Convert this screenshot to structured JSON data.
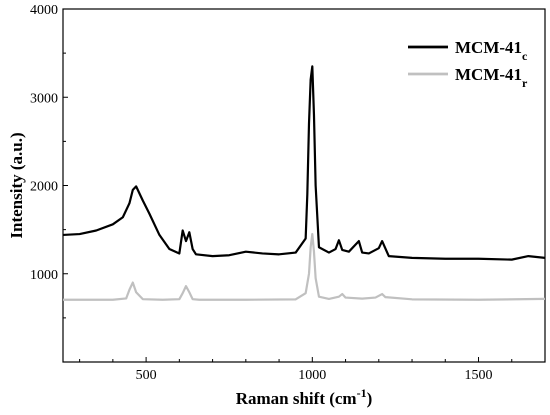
{
  "chart_data": {
    "type": "line",
    "title": "",
    "xlabel": "Raman shift (cm",
    "xlabel_sup": "-1",
    "xlabel_suffix": ")",
    "ylabel": "Intensity (a.u.)",
    "xlim": [
      250,
      1700
    ],
    "ylim": [
      0,
      4000
    ],
    "x_ticks": [
      500,
      1000,
      1500
    ],
    "y_ticks": [
      1000,
      2000,
      3000,
      4000
    ],
    "grid": false,
    "legend_position": "top-right",
    "series": [
      {
        "name": "MCM-41",
        "name_sub": "c",
        "color": "#000000",
        "x": [
          250,
          300,
          350,
          400,
          430,
          450,
          460,
          470,
          490,
          510,
          540,
          570,
          600,
          610,
          620,
          630,
          640,
          650,
          700,
          750,
          800,
          850,
          900,
          950,
          980,
          985,
          990,
          995,
          1000,
          1005,
          1010,
          1020,
          1050,
          1070,
          1080,
          1090,
          1110,
          1130,
          1140,
          1150,
          1170,
          1200,
          1210,
          1230,
          1300,
          1400,
          1500,
          1600,
          1650,
          1700
        ],
        "y": [
          1440,
          1450,
          1490,
          1560,
          1640,
          1800,
          1950,
          1990,
          1830,
          1680,
          1440,
          1280,
          1230,
          1490,
          1370,
          1470,
          1280,
          1220,
          1200,
          1210,
          1250,
          1230,
          1220,
          1240,
          1400,
          1900,
          2700,
          3200,
          3350,
          2800,
          2000,
          1300,
          1240,
          1280,
          1380,
          1270,
          1250,
          1330,
          1370,
          1240,
          1230,
          1290,
          1370,
          1200,
          1180,
          1170,
          1170,
          1160,
          1200,
          1180
        ]
      },
      {
        "name": "MCM-41",
        "name_sub": "r",
        "color": "#c0c0c0",
        "x": [
          250,
          400,
          440,
          450,
          460,
          470,
          490,
          550,
          600,
          610,
          620,
          630,
          640,
          660,
          800,
          950,
          980,
          990,
          995,
          1000,
          1005,
          1010,
          1020,
          1050,
          1080,
          1090,
          1100,
          1150,
          1190,
          1200,
          1210,
          1220,
          1300,
          1500,
          1700
        ],
        "y": [
          705,
          705,
          720,
          820,
          900,
          790,
          712,
          705,
          712,
          780,
          860,
          790,
          712,
          705,
          705,
          710,
          780,
          1000,
          1300,
          1450,
          1250,
          950,
          740,
          715,
          740,
          770,
          730,
          718,
          730,
          750,
          770,
          735,
          710,
          705,
          715
        ]
      }
    ]
  }
}
